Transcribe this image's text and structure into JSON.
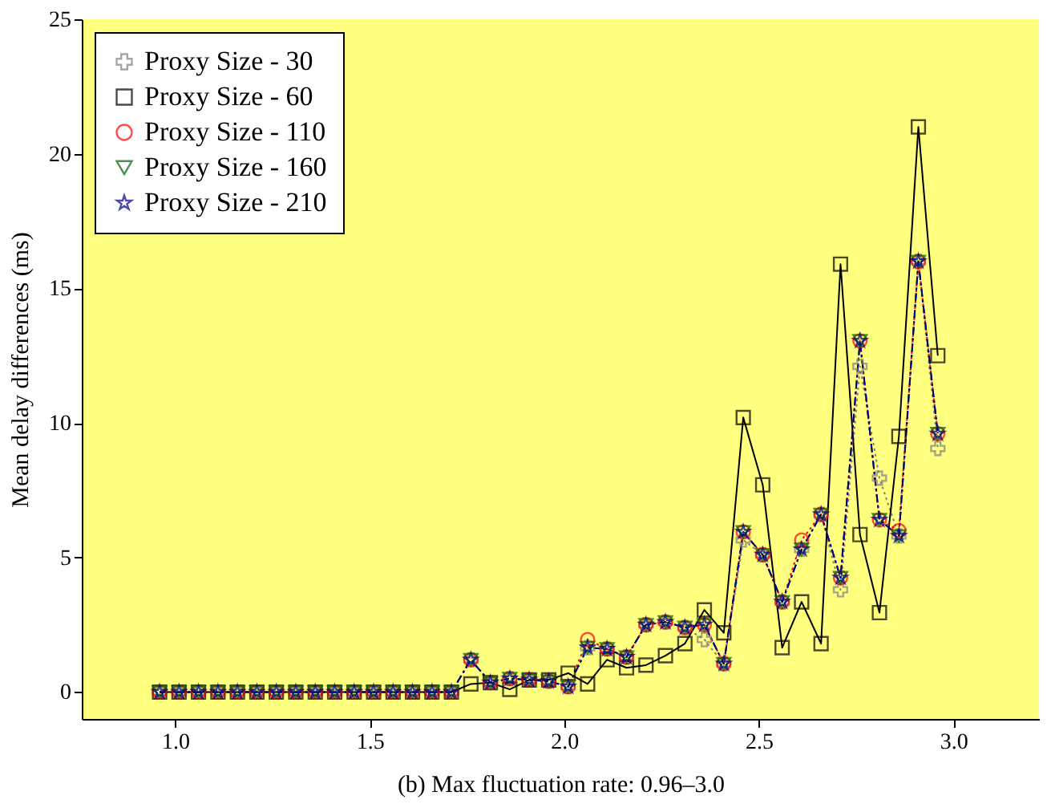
{
  "chart_data": {
    "type": "line",
    "xlabel": "(b) Max fluctuation rate: 0.96–3.0",
    "ylabel": "Mean delay differences (ms)",
    "x": [
      0.96,
      1.01,
      1.06,
      1.11,
      1.16,
      1.21,
      1.26,
      1.31,
      1.36,
      1.41,
      1.46,
      1.51,
      1.56,
      1.61,
      1.66,
      1.71,
      1.76,
      1.81,
      1.86,
      1.91,
      1.96,
      2.01,
      2.06,
      2.11,
      2.16,
      2.21,
      2.26,
      2.31,
      2.36,
      2.41,
      2.46,
      2.51,
      2.56,
      2.61,
      2.66,
      2.71,
      2.76,
      2.81,
      2.86,
      2.91,
      2.96
    ],
    "series": [
      {
        "name": "Proxy Size - 30",
        "color": "#808080",
        "marker": "cross",
        "line_style": "dotted",
        "values": [
          0,
          0,
          0,
          0,
          0,
          0,
          0,
          0,
          0,
          0,
          0,
          0,
          0,
          0,
          0,
          0,
          1.2,
          0.35,
          0.5,
          0.45,
          0.4,
          0.2,
          1.65,
          1.6,
          1.3,
          2.5,
          2.6,
          2.4,
          1.95,
          1.05,
          5.65,
          5.1,
          3.35,
          5.3,
          6.6,
          3.8,
          12.1,
          7.95,
          5.8,
          16.0,
          9.05
        ]
      },
      {
        "name": "Proxy Size - 60",
        "color": "#000000",
        "marker": "square",
        "line_style": "solid",
        "values": [
          0,
          0,
          0,
          0,
          0,
          0,
          0,
          0,
          0,
          0,
          0,
          0,
          0,
          0,
          0,
          0,
          0.3,
          0.35,
          0.1,
          0.45,
          0.45,
          0.7,
          0.3,
          1.2,
          0.9,
          1.0,
          1.35,
          1.8,
          3.05,
          2.2,
          10.2,
          7.7,
          1.65,
          3.35,
          1.8,
          15.9,
          5.85,
          2.95,
          9.5,
          21.0,
          12.5
        ]
      },
      {
        "name": "Proxy Size - 110",
        "color": "#ff0000",
        "marker": "circle",
        "line_style": "dotted",
        "values": [
          0,
          0,
          0,
          0,
          0,
          0,
          0,
          0,
          0,
          0,
          0,
          0,
          0,
          0,
          0,
          0,
          1.2,
          0.35,
          0.5,
          0.45,
          0.4,
          0.2,
          1.95,
          1.6,
          1.3,
          2.5,
          2.6,
          2.4,
          2.5,
          1.05,
          5.95,
          5.1,
          3.35,
          5.65,
          6.6,
          4.25,
          13.05,
          6.4,
          6.0,
          16.0,
          9.6
        ]
      },
      {
        "name": "Proxy Size - 160",
        "color": "#006400",
        "marker": "triangle",
        "line_style": "dashdot",
        "values": [
          0,
          0,
          0,
          0,
          0,
          0,
          0,
          0,
          0,
          0,
          0,
          0,
          0,
          0,
          0,
          0,
          1.2,
          0.35,
          0.5,
          0.45,
          0.4,
          0.2,
          1.65,
          1.6,
          1.3,
          2.5,
          2.6,
          2.4,
          2.5,
          1.05,
          5.95,
          5.1,
          3.35,
          5.3,
          6.6,
          4.25,
          13.05,
          6.4,
          5.8,
          16.0,
          9.6
        ]
      },
      {
        "name": "Proxy Size - 210",
        "color": "#00008b",
        "marker": "star",
        "line_style": "dashdot",
        "values": [
          0,
          0,
          0,
          0,
          0,
          0,
          0,
          0,
          0,
          0,
          0,
          0,
          0,
          0,
          0,
          0,
          1.2,
          0.35,
          0.5,
          0.45,
          0.4,
          0.2,
          1.65,
          1.6,
          1.3,
          2.5,
          2.6,
          2.4,
          2.5,
          1.05,
          5.95,
          5.1,
          3.35,
          5.3,
          6.6,
          4.25,
          13.05,
          6.4,
          5.8,
          16.0,
          9.6
        ]
      }
    ],
    "xlim": [
      0.76,
      3.22
    ],
    "xticks": [
      {
        "value": 1,
        "label": "1.0"
      },
      {
        "value": 1.5,
        "label": "1.5"
      },
      {
        "value": 2,
        "label": "2.0"
      },
      {
        "value": 2.5,
        "label": "2.5"
      },
      {
        "value": 3,
        "label": "3.0"
      }
    ],
    "ylim": [
      -1,
      25
    ],
    "yticks": [
      0,
      5,
      10,
      15,
      20,
      25
    ],
    "grid": false,
    "legend": "top left"
  }
}
